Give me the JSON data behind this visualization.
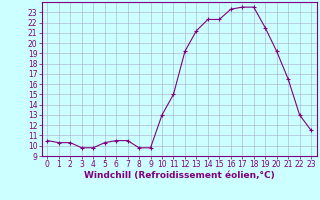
{
  "x": [
    0,
    1,
    2,
    3,
    4,
    5,
    6,
    7,
    8,
    9,
    10,
    11,
    12,
    13,
    14,
    15,
    16,
    17,
    18,
    19,
    20,
    21,
    22,
    23
  ],
  "y": [
    10.5,
    10.3,
    10.3,
    9.8,
    9.8,
    10.3,
    10.5,
    10.5,
    9.8,
    9.8,
    13.0,
    15.0,
    19.2,
    21.2,
    22.3,
    22.3,
    23.3,
    23.5,
    23.5,
    21.5,
    19.2,
    16.5,
    13.0,
    11.5
  ],
  "line_color": "#800080",
  "marker": "+",
  "marker_color": "#800080",
  "bg_color": "#ccffff",
  "grid_color": "#aaaacc",
  "xlabel": "Windchill (Refroidissement éolien,°C)",
  "ylim": [
    9,
    24
  ],
  "xlim_min": -0.5,
  "xlim_max": 23.5,
  "yticks": [
    9,
    10,
    11,
    12,
    13,
    14,
    15,
    16,
    17,
    18,
    19,
    20,
    21,
    22,
    23
  ],
  "xticks": [
    0,
    1,
    2,
    3,
    4,
    5,
    6,
    7,
    8,
    9,
    10,
    11,
    12,
    13,
    14,
    15,
    16,
    17,
    18,
    19,
    20,
    21,
    22,
    23
  ],
  "tick_fontsize": 5.5,
  "xlabel_fontsize": 6.5
}
